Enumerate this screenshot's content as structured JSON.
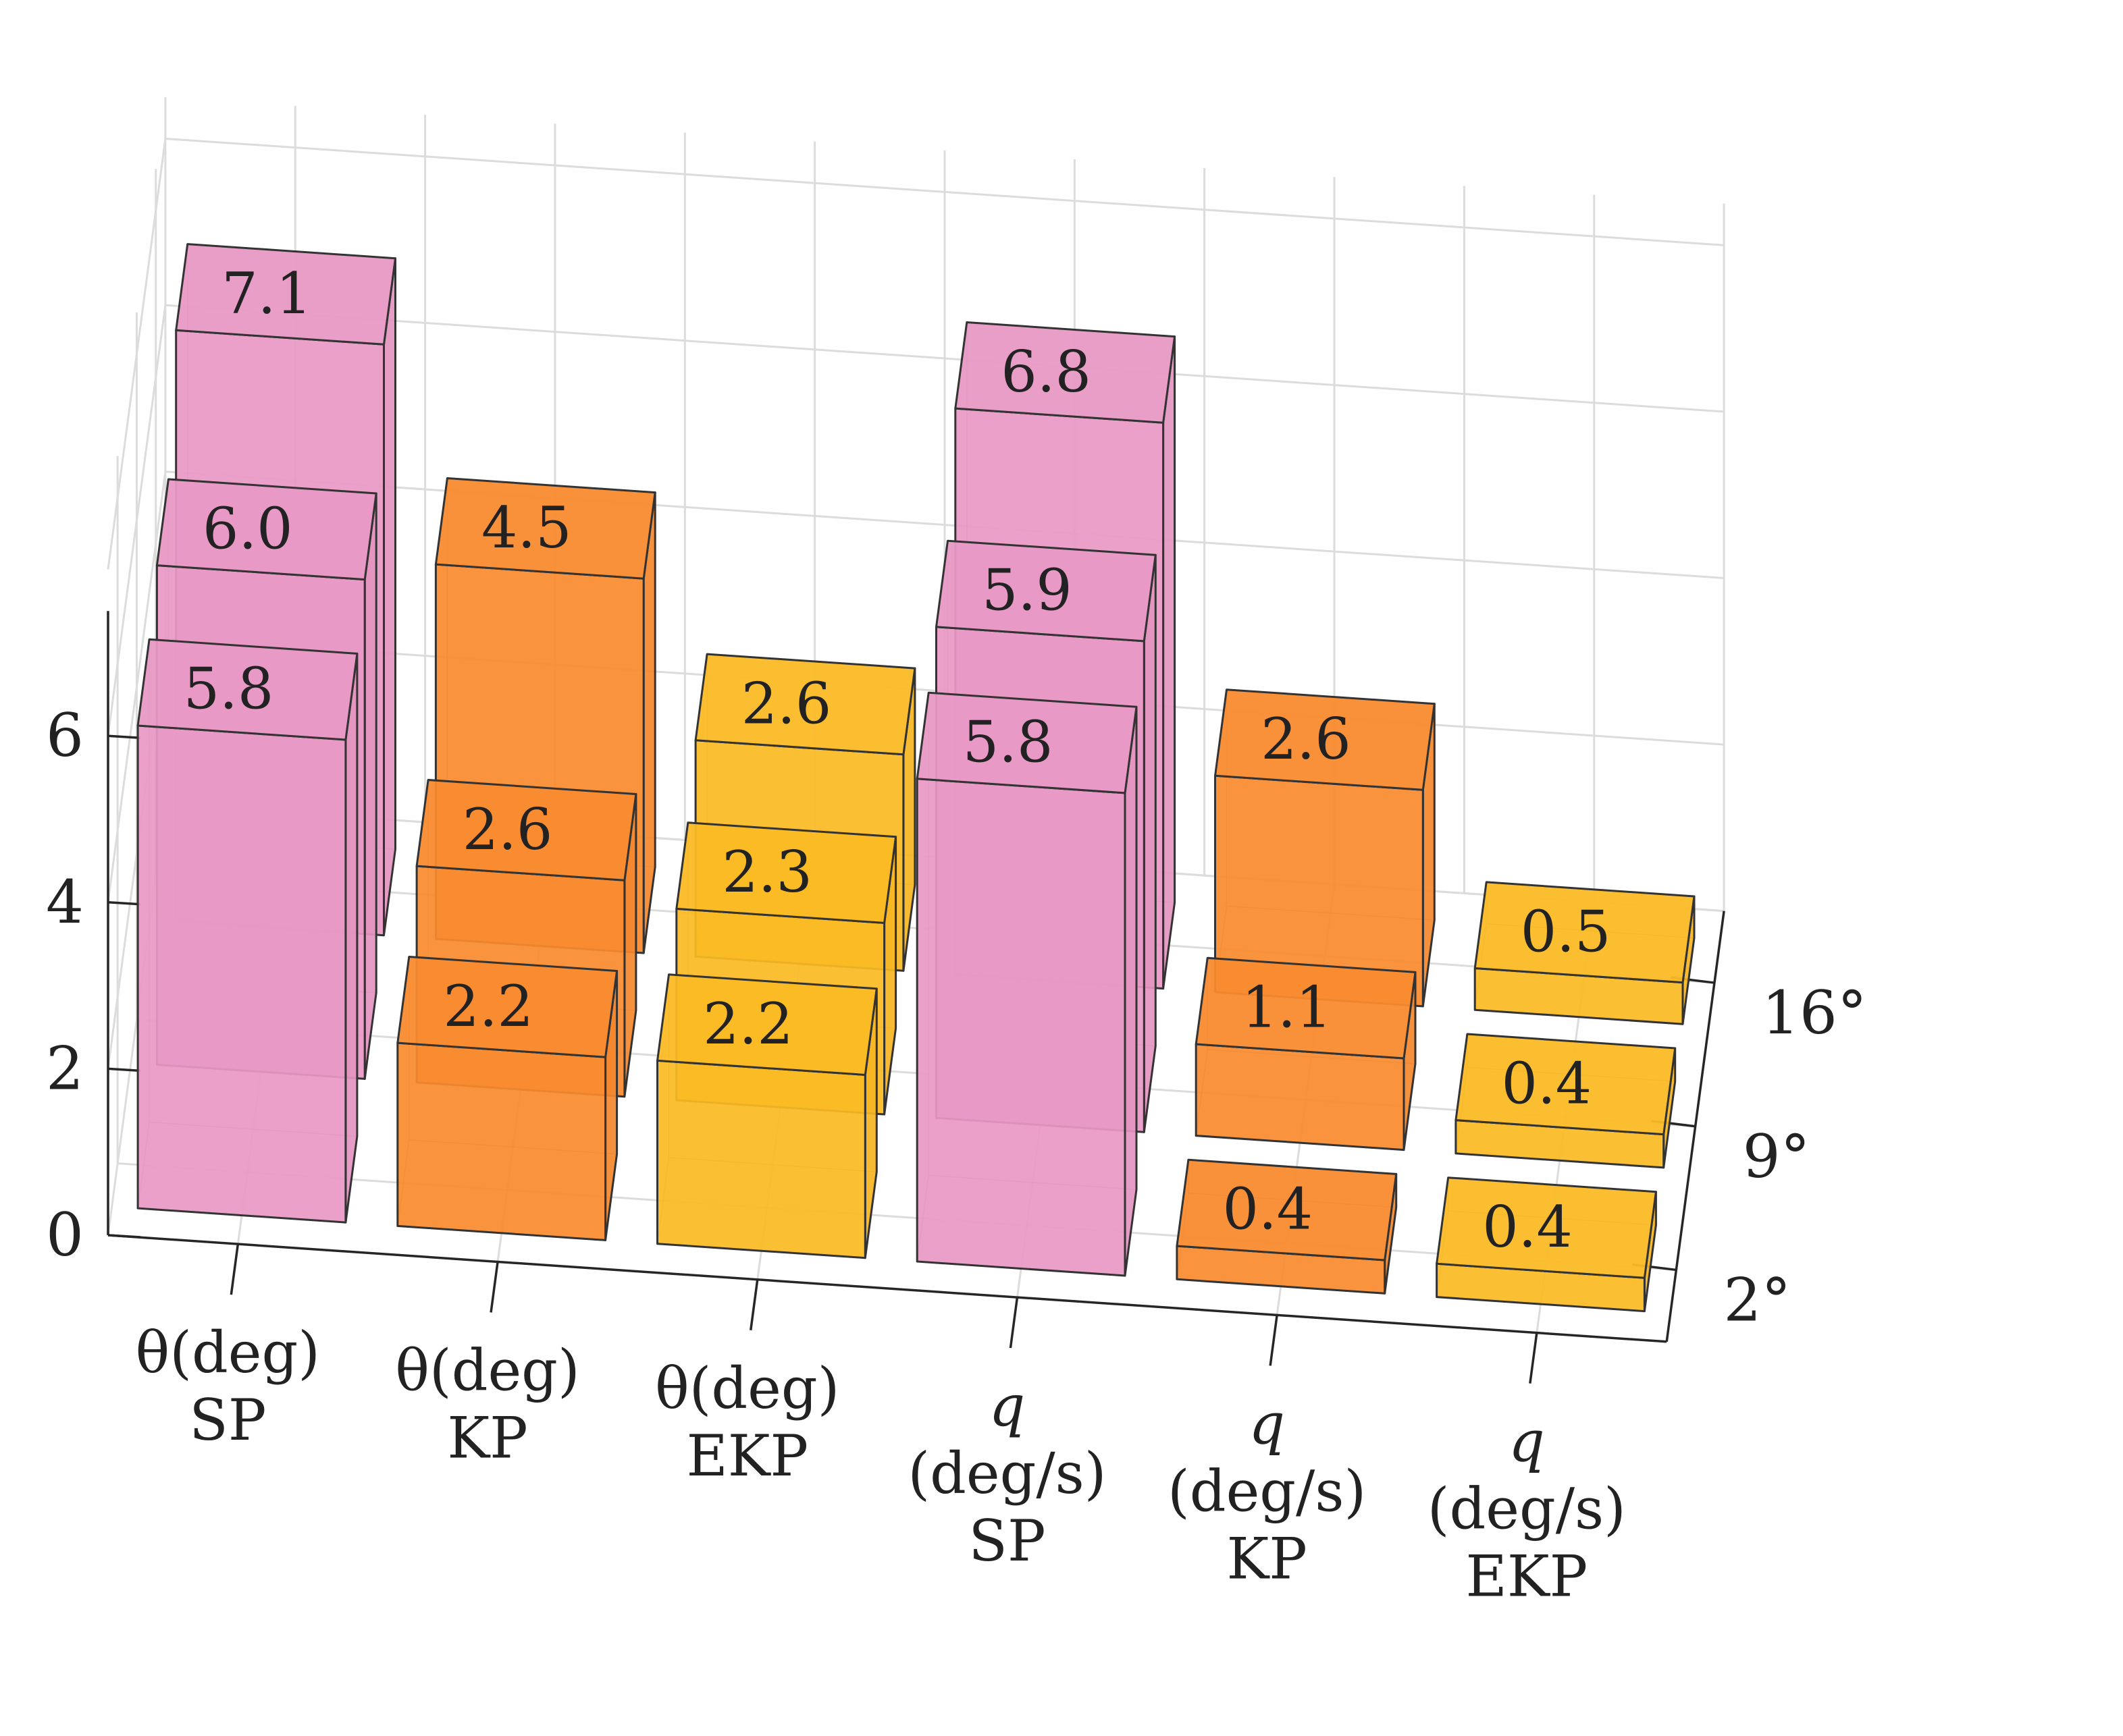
{
  "chart_data": {
    "type": "bar3d",
    "title": "",
    "categories": [
      [
        "θ(deg)",
        "SP"
      ],
      [
        "θ(deg)",
        "KP"
      ],
      [
        "θ(deg)",
        "EKP"
      ],
      [
        "q",
        "(deg/s)",
        "SP"
      ],
      [
        "q",
        "(deg/s)",
        "KP"
      ],
      [
        "q",
        "(deg/s)",
        "EKP"
      ]
    ],
    "depth_categories": [
      "2°",
      "9°",
      "16°"
    ],
    "series": [
      {
        "values": [
          5.8,
          2.2,
          2.2,
          5.8,
          0.4,
          0.4
        ]
      },
      {
        "values": [
          6.0,
          2.6,
          2.3,
          5.9,
          1.1,
          0.4
        ]
      },
      {
        "values": [
          7.1,
          4.5,
          2.6,
          6.8,
          2.6,
          0.5
        ]
      }
    ],
    "data_labels": [
      [
        "5.8",
        "2.2",
        "2.2",
        "5.8",
        "0.4",
        "0.4"
      ],
      [
        "6.0",
        "2.6",
        "2.3",
        "5.9",
        "1.1",
        "0.4"
      ],
      [
        "7.1",
        "4.5",
        "2.6",
        "6.8",
        "2.6",
        "0.5"
      ]
    ],
    "z_ticks": [
      0,
      2,
      4,
      6
    ],
    "zlim": [
      0,
      7
    ],
    "bar_colors": [
      "#e899c5",
      "#f98b2f",
      "#fbba25",
      "#e899c5",
      "#f98b2f",
      "#fbba25"
    ],
    "grid": true,
    "xlabel": "",
    "ylabel": "",
    "zlabel": ""
  }
}
